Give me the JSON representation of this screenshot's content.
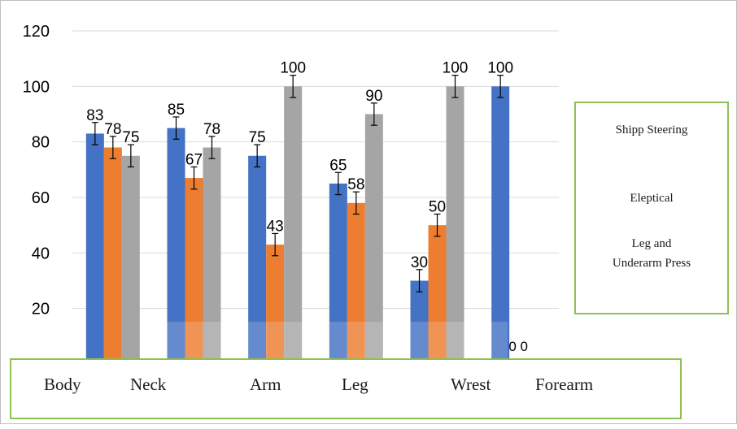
{
  "chart_data": {
    "type": "bar",
    "categories": [
      "Body",
      "Neck",
      "Arm",
      "Leg",
      "Wrest",
      "Forearm"
    ],
    "series": [
      {
        "name": "Shipp Steering",
        "color": "#4472c4",
        "values": [
          83,
          85,
          75,
          65,
          30,
          100
        ]
      },
      {
        "name": "Eleptical",
        "color": "#ed7d31",
        "values": [
          78,
          67,
          43,
          58,
          50,
          0
        ]
      },
      {
        "name": "Leg and Underarm Press",
        "color": "#a5a5a5",
        "values": [
          75,
          78,
          100,
          90,
          100,
          0
        ]
      }
    ],
    "error_bar": 4,
    "ylim": [
      0,
      120
    ],
    "yticks": [
      "0",
      "20",
      "40",
      "60",
      "80",
      "100",
      "120"
    ],
    "grid": true,
    "legend_position": "right"
  },
  "legend": {
    "item_1": "Shipp Steering",
    "item_2": "Eleptical",
    "item_3_line_1": "Leg and",
    "item_3_line_2": "Underarm Press"
  },
  "category_box": {
    "labels": [
      "Body",
      "Neck",
      "Arm",
      "Leg",
      "Wrest",
      "Forearm"
    ]
  }
}
